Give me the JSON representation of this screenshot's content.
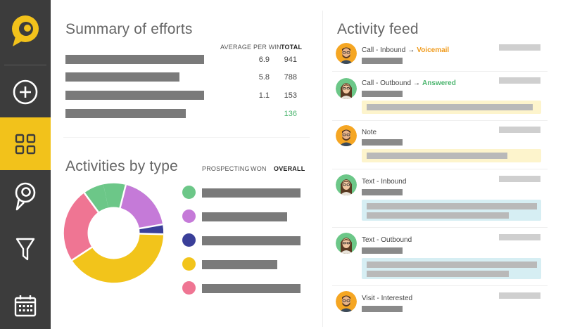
{
  "sidebar": {
    "items": [
      {
        "icon": "add-icon",
        "active": false
      },
      {
        "icon": "dashboard-grid-icon",
        "active": true
      },
      {
        "icon": "map-pin-icon",
        "active": false
      },
      {
        "icon": "filter-icon",
        "active": false
      },
      {
        "icon": "calendar-icon",
        "active": false
      }
    ],
    "accent": "#f2c21b",
    "background": "#3c3c3c"
  },
  "summary": {
    "title": "Summary of efforts",
    "col_avg": "AVERAGE PER WIN",
    "col_total": "TOTAL",
    "rows": [
      {
        "avg": "6.9",
        "total": "941"
      },
      {
        "avg": "5.8",
        "total": "788"
      },
      {
        "avg": "1.1",
        "total": "153"
      },
      {
        "avg": "",
        "total": "136"
      }
    ]
  },
  "activities": {
    "title": "Activities by type",
    "tabs": [
      "PROSPECTING",
      "WON",
      "OVERALL"
    ],
    "active_tab": "OVERALL",
    "colors": [
      "#6cc788",
      "#c57ad8",
      "#3a3f99",
      "#f2c41b",
      "#ef7593"
    ]
  },
  "feed": {
    "title": "Activity feed",
    "items": [
      {
        "type": "Call - Inbound",
        "status": "Voicemail",
        "status_color": "orange",
        "avatar": "man"
      },
      {
        "type": "Call - Outbound",
        "status": "Answered",
        "status_color": "green",
        "avatar": "woman"
      },
      {
        "type": "Note",
        "status": "",
        "status_color": "",
        "avatar": "man"
      },
      {
        "type": "Text - Inbound",
        "status": "",
        "status_color": "",
        "avatar": "woman"
      },
      {
        "type": "Text - Outbound",
        "status": "",
        "status_color": "",
        "avatar": "woman"
      },
      {
        "type": "Visit - Interested",
        "status": "",
        "status_color": "",
        "avatar": "man"
      }
    ],
    "arrow": "→"
  }
}
